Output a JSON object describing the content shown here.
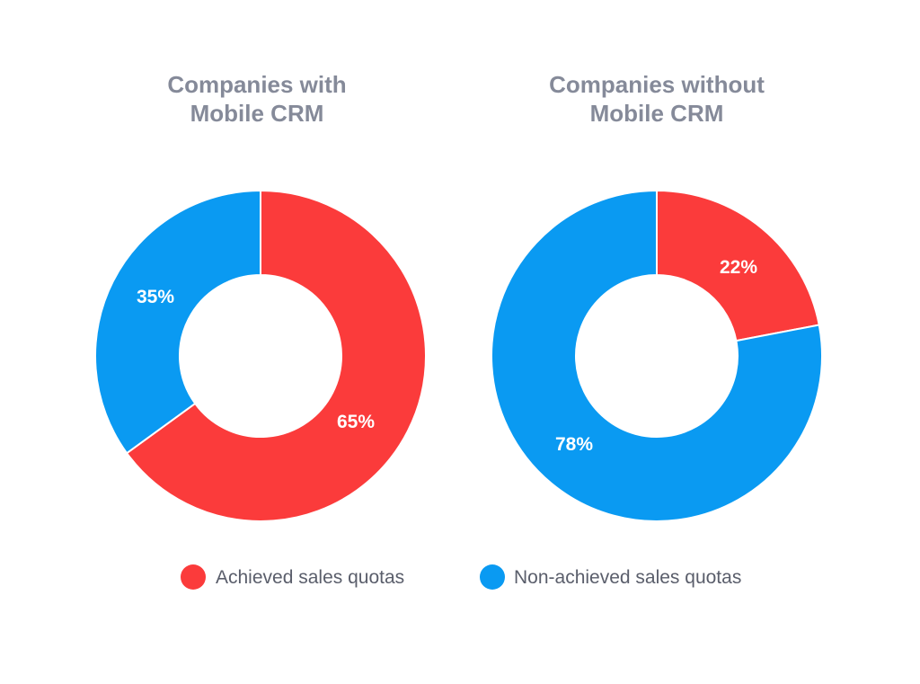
{
  "chart_data": [
    {
      "type": "pie",
      "title_lines": [
        "Companies with",
        "Mobile CRM"
      ],
      "slices": [
        {
          "label": "Achieved sales quotas",
          "value": 65,
          "display": "65%",
          "color": "#fb3b3b"
        },
        {
          "label": "Non-achieved sales quotas",
          "value": 35,
          "display": "35%",
          "color": "#0a9af2"
        }
      ]
    },
    {
      "type": "pie",
      "title_lines": [
        "Companies without",
        "Mobile CRM"
      ],
      "slices": [
        {
          "label": "Achieved sales quotas",
          "value": 22,
          "display": "22%",
          "color": "#fb3b3b"
        },
        {
          "label": "Non-achieved sales quotas",
          "value": 78,
          "display": "78%",
          "color": "#0a9af2"
        }
      ]
    }
  ],
  "legend": {
    "placement": "bottom-center",
    "items": [
      {
        "label": "Achieved sales quotas",
        "color": "#fb3b3b"
      },
      {
        "label": "Non-achieved sales quotas",
        "color": "#0a9af2"
      }
    ]
  }
}
